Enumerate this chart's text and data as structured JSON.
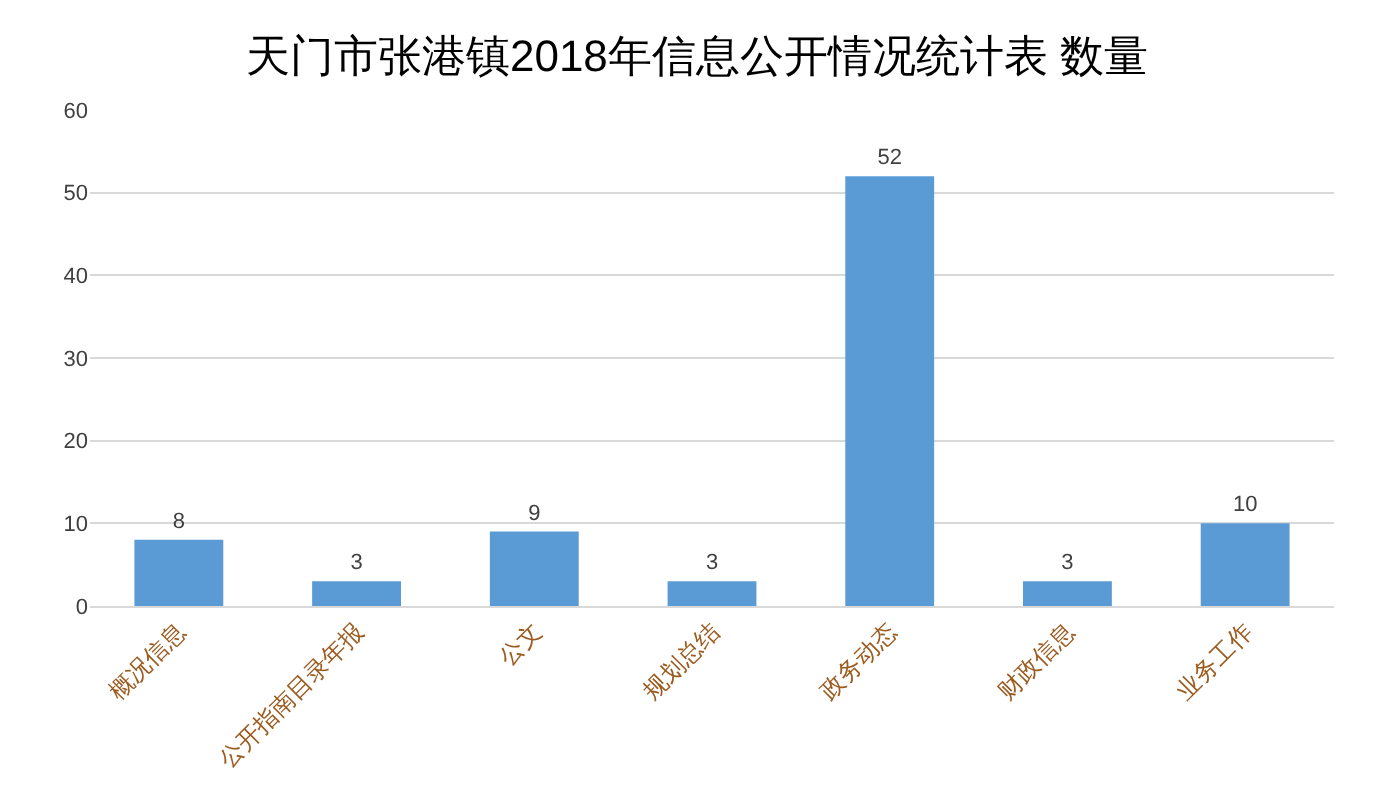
{
  "chart_data": {
    "type": "bar",
    "title": "天门市张港镇2018年信息公开情况统计表 数量",
    "categories": [
      "概况信息",
      "公开指南目录年报",
      "公文",
      "规划总结",
      "政务动态",
      "财政信息",
      "业务工作"
    ],
    "values": [
      8,
      3,
      9,
      3,
      52,
      3,
      10
    ],
    "color": "#5b9bd5",
    "ylim": [
      0,
      60
    ],
    "yticks": [
      0,
      10,
      20,
      30,
      40,
      50,
      60
    ],
    "grid": "y",
    "data_labels": true
  }
}
